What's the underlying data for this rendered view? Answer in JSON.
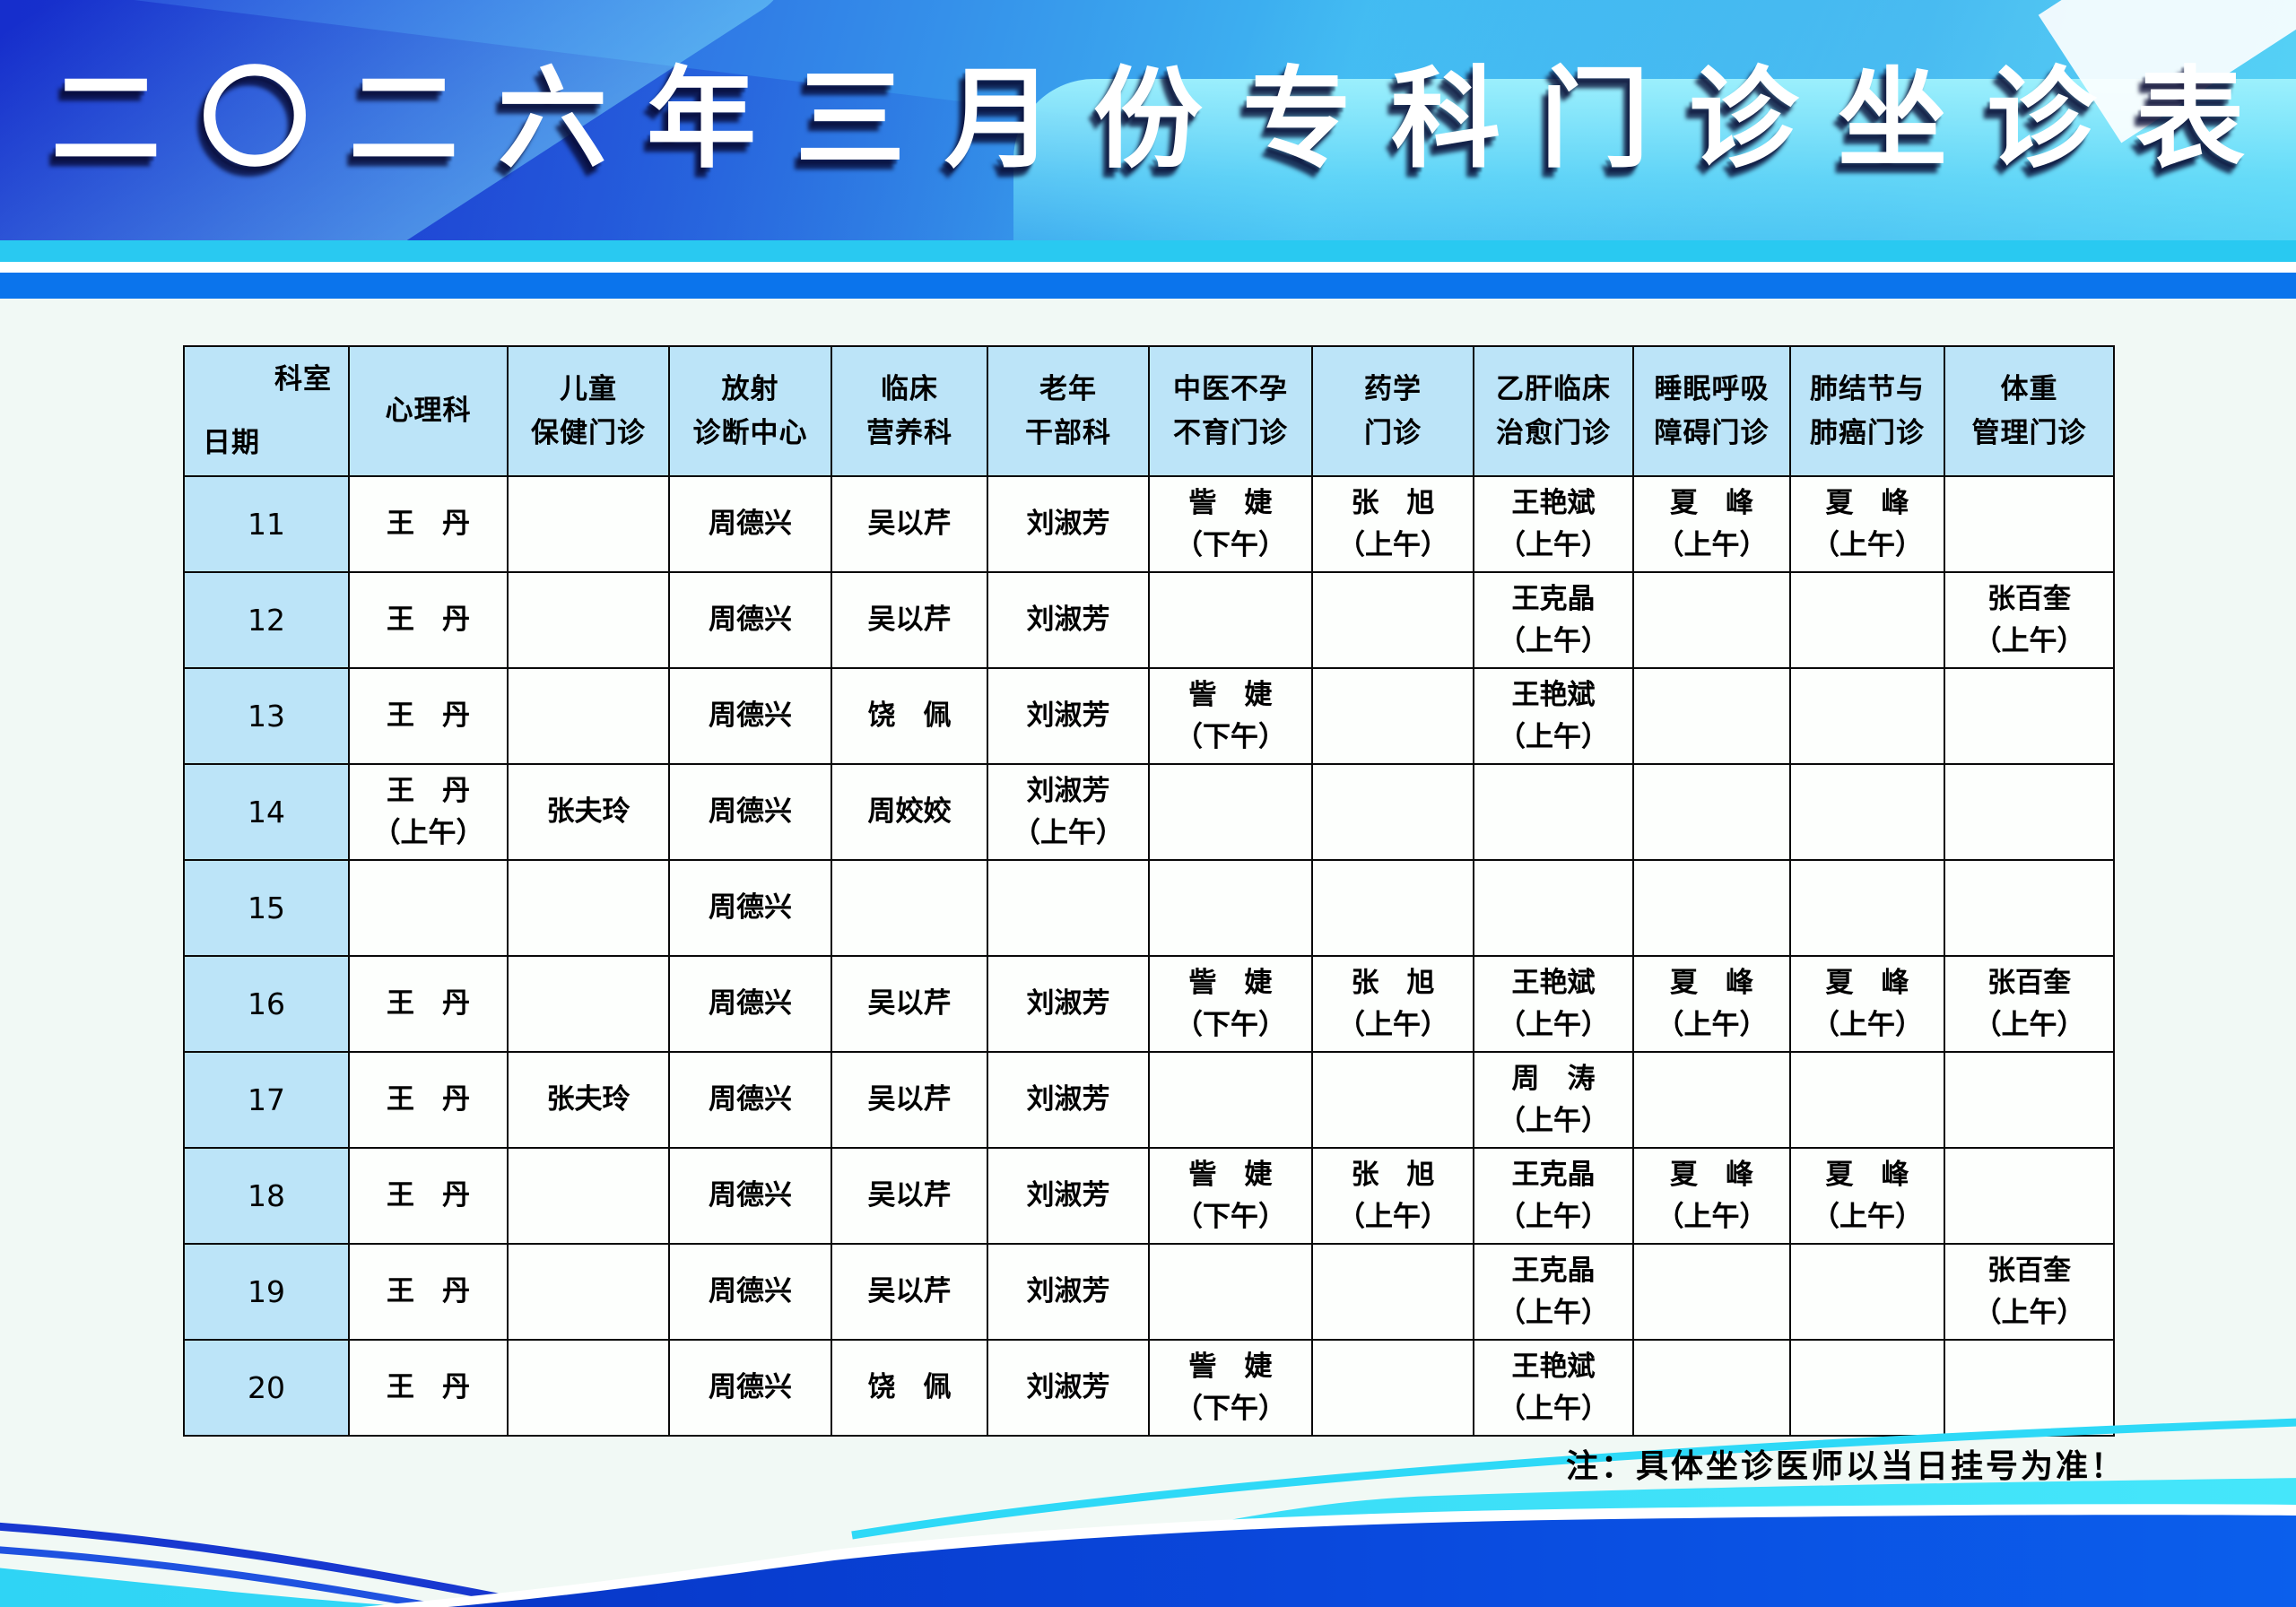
{
  "title": "二〇二六年三月份专科门诊坐诊表",
  "note": "注：具体坐诊医师以当日挂号为准！",
  "colors": {
    "banner_deep_blue": "#2443d6",
    "banner_cyan": "#3fb9f2",
    "stripe_cyan": "#29c9f1",
    "stripe_blue": "#0b74ec",
    "header_cell_blue": "#bce4f8",
    "wave_blue": "#0a52e4",
    "wave_cyan": "#35dcf7"
  },
  "table": {
    "corner_top": "科室",
    "corner_bottom": "日期",
    "columns": [
      "心理科",
      "儿童\n保健门诊",
      "放射\n诊断中心",
      "临床\n营养科",
      "老年\n干部科",
      "中医不孕\n不育门诊",
      "药学\n门诊",
      "乙肝临床\n治愈门诊",
      "睡眠呼吸\n障碍门诊",
      "肺结节与\n肺癌门诊",
      "体重\n管理门诊"
    ],
    "rows": [
      {
        "date": "11",
        "cells": [
          "王　丹",
          "",
          "周德兴",
          "吴以芹",
          "刘淑芳",
          "訾　婕\n（下午）",
          "张　旭\n（上午）",
          "王艳斌\n（上午）",
          "夏　峰\n（上午）",
          "夏　峰\n（上午）",
          ""
        ]
      },
      {
        "date": "12",
        "cells": [
          "王　丹",
          "",
          "周德兴",
          "吴以芹",
          "刘淑芳",
          "",
          "",
          "王克晶\n（上午）",
          "",
          "",
          "张百奎\n（上午）"
        ]
      },
      {
        "date": "13",
        "cells": [
          "王　丹",
          "",
          "周德兴",
          "饶　佩",
          "刘淑芳",
          "訾　婕\n（下午）",
          "",
          "王艳斌\n（上午）",
          "",
          "",
          ""
        ]
      },
      {
        "date": "14",
        "cells": [
          "王　丹\n（上午）",
          "张夫玲",
          "周德兴",
          "周姣姣",
          "刘淑芳\n（上午）",
          "",
          "",
          "",
          "",
          "",
          ""
        ]
      },
      {
        "date": "15",
        "cells": [
          "",
          "",
          "周德兴",
          "",
          "",
          "",
          "",
          "",
          "",
          "",
          ""
        ]
      },
      {
        "date": "16",
        "cells": [
          "王　丹",
          "",
          "周德兴",
          "吴以芹",
          "刘淑芳",
          "訾　婕\n（下午）",
          "张　旭\n（上午）",
          "王艳斌\n（上午）",
          "夏　峰\n（上午）",
          "夏　峰\n（上午）",
          "张百奎\n（上午）"
        ]
      },
      {
        "date": "17",
        "cells": [
          "王　丹",
          "张夫玲",
          "周德兴",
          "吴以芹",
          "刘淑芳",
          "",
          "",
          "周　涛\n（上午）",
          "",
          "",
          ""
        ]
      },
      {
        "date": "18",
        "cells": [
          "王　丹",
          "",
          "周德兴",
          "吴以芹",
          "刘淑芳",
          "訾　婕\n（下午）",
          "张　旭\n（上午）",
          "王克晶\n（上午）",
          "夏　峰\n（上午）",
          "夏　峰\n（上午）",
          ""
        ]
      },
      {
        "date": "19",
        "cells": [
          "王　丹",
          "",
          "周德兴",
          "吴以芹",
          "刘淑芳",
          "",
          "",
          "王克晶\n（上午）",
          "",
          "",
          "张百奎\n（上午）"
        ]
      },
      {
        "date": "20",
        "cells": [
          "王　丹",
          "",
          "周德兴",
          "饶　佩",
          "刘淑芳",
          "訾　婕\n（下午）",
          "",
          "王艳斌\n（上午）",
          "",
          "",
          ""
        ]
      }
    ]
  }
}
